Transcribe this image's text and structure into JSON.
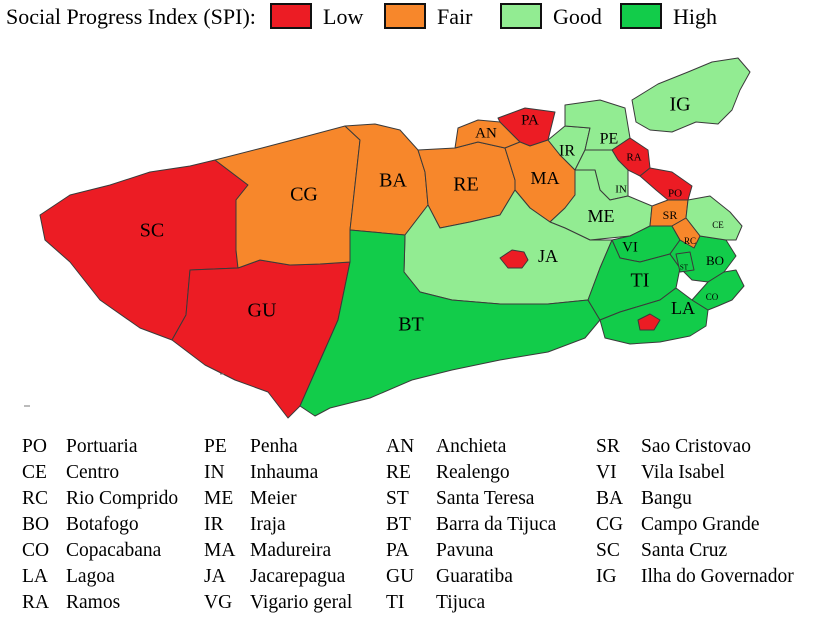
{
  "legend": {
    "title": "Social Progress Index (SPI):",
    "items": [
      {
        "label": "Low",
        "color": "#ec1c24"
      },
      {
        "label": "Fair",
        "color": "#f7872b"
      },
      {
        "label": "Good",
        "color": "#92ec92"
      },
      {
        "label": "High",
        "color": "#12cc4a"
      }
    ]
  },
  "colors": {
    "low": "#ec1c24",
    "fair": "#f7872b",
    "good": "#92ec92",
    "high": "#12cc4a",
    "border": "#3a3a3a"
  },
  "regions": [
    {
      "code": "SC",
      "level": "low"
    },
    {
      "code": "GU",
      "level": "low"
    },
    {
      "code": "CG",
      "level": "fair"
    },
    {
      "code": "BA",
      "level": "fair"
    },
    {
      "code": "RE",
      "level": "fair"
    },
    {
      "code": "AN",
      "level": "fair"
    },
    {
      "code": "PA",
      "level": "low"
    },
    {
      "code": "MA",
      "level": "fair"
    },
    {
      "code": "IR",
      "level": "good"
    },
    {
      "code": "PE",
      "level": "good"
    },
    {
      "code": "RA",
      "level": "low"
    },
    {
      "code": "IN",
      "level": "good"
    },
    {
      "code": "PO",
      "level": "low"
    },
    {
      "code": "ME",
      "level": "good"
    },
    {
      "code": "SR",
      "level": "fair"
    },
    {
      "code": "IG",
      "level": "good"
    },
    {
      "code": "JA",
      "level": "good"
    },
    {
      "code": "BT",
      "level": "high"
    },
    {
      "code": "VI",
      "level": "high"
    },
    {
      "code": "TI",
      "level": "high"
    },
    {
      "code": "LA",
      "level": "high"
    },
    {
      "code": "BO",
      "level": "high"
    },
    {
      "code": "CO",
      "level": "high"
    },
    {
      "code": "CE",
      "level": "good"
    },
    {
      "code": "RC",
      "level": "fair"
    },
    {
      "code": "ST",
      "level": "high"
    }
  ],
  "key": [
    [
      {
        "abbr": "PO",
        "name": "Portuaria"
      },
      {
        "abbr": "CE",
        "name": "Centro"
      },
      {
        "abbr": "RC",
        "name": "Rio Comprido"
      },
      {
        "abbr": "BO",
        "name": "Botafogo"
      },
      {
        "abbr": "CO",
        "name": "Copacabana"
      },
      {
        "abbr": "LA",
        "name": "Lagoa"
      },
      {
        "abbr": "RA",
        "name": "Ramos"
      }
    ],
    [
      {
        "abbr": "PE",
        "name": "Penha"
      },
      {
        "abbr": "IN",
        "name": "Inhauma"
      },
      {
        "abbr": "ME",
        "name": "Meier"
      },
      {
        "abbr": "IR",
        "name": "Iraja"
      },
      {
        "abbr": "MA",
        "name": "Madureira"
      },
      {
        "abbr": "JA",
        "name": "Jacarepagua"
      },
      {
        "abbr": "VG",
        "name": "Vigario geral"
      }
    ],
    [
      {
        "abbr": "AN",
        "name": "Anchieta"
      },
      {
        "abbr": "RE",
        "name": "Realengo"
      },
      {
        "abbr": "ST",
        "name": "Santa Teresa"
      },
      {
        "abbr": "BT",
        "name": "Barra da Tijuca"
      },
      {
        "abbr": "PA",
        "name": "Pavuna"
      },
      {
        "abbr": "GU",
        "name": "Guaratiba"
      },
      {
        "abbr": "TI",
        "name": "Tijuca"
      }
    ],
    [
      {
        "abbr": "SR",
        "name": "Sao Cristovao"
      },
      {
        "abbr": "VI",
        "name": "Vila Isabel"
      },
      {
        "abbr": "BA",
        "name": "Bangu"
      },
      {
        "abbr": "CG",
        "name": "Campo Grande"
      },
      {
        "abbr": "SC",
        "name": "Santa Cruz"
      },
      {
        "abbr": "IG",
        "name": "Ilha do Governador"
      }
    ]
  ]
}
